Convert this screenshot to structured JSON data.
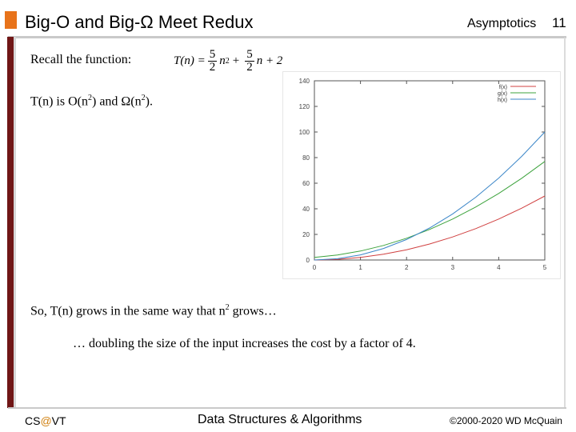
{
  "slide": {
    "title": "Big-O and Big-Ω Meet Redux",
    "topic": "Asymptotics",
    "number": "11"
  },
  "body": {
    "recall": "Recall the function:",
    "formula": {
      "lhs": "T(n) =",
      "frac1_num": "5",
      "frac1_den": "2",
      "n_sq": "n",
      "sq_exp": "2",
      "plus1": "+",
      "frac2_num": "5",
      "frac2_den": "2",
      "tail": "n + 2"
    },
    "claim_pre": "T(n) is O(n",
    "claim_mid": ") and Ω(n",
    "claim_post": ").",
    "claim_exp1": "2",
    "claim_exp2": "2",
    "grows_pre": "So, T(n) grows in the same way that n",
    "grows_exp": "2",
    "grows_post": " grows…",
    "doubling": "… doubling the size of the input increases the cost by a factor of 4."
  },
  "chart_data": {
    "type": "line",
    "x_ticks": [
      "0",
      "1",
      "2",
      "3",
      "4",
      "5"
    ],
    "y_ticks": [
      "0",
      "20",
      "40",
      "60",
      "80",
      "100",
      "120",
      "140"
    ],
    "xlim": [
      0,
      5
    ],
    "ylim": [
      0,
      140
    ],
    "legend_placement": "top-right",
    "grid": false,
    "series": [
      {
        "name": "f(x)",
        "color": "#d04040",
        "points": [
          [
            0,
            0
          ],
          [
            0.5,
            0.5
          ],
          [
            1,
            2
          ],
          [
            1.5,
            4.5
          ],
          [
            2,
            8
          ],
          [
            2.5,
            12.5
          ],
          [
            3,
            18
          ],
          [
            3.5,
            24.5
          ],
          [
            4,
            32
          ],
          [
            4.5,
            40.5
          ],
          [
            5,
            50
          ]
        ]
      },
      {
        "name": "g(x)",
        "color": "#3da33d",
        "points": [
          [
            0,
            2
          ],
          [
            0.5,
            3.875
          ],
          [
            1,
            7
          ],
          [
            1.5,
            11.375
          ],
          [
            2,
            17
          ],
          [
            2.5,
            23.875
          ],
          [
            3,
            32
          ],
          [
            3.5,
            41.375
          ],
          [
            4,
            52
          ],
          [
            4.5,
            63.875
          ],
          [
            5,
            77
          ]
        ]
      },
      {
        "name": "h(x)",
        "color": "#3b86c8",
        "points": [
          [
            0,
            0
          ],
          [
            0.5,
            1
          ],
          [
            1,
            4
          ],
          [
            1.5,
            9
          ],
          [
            2,
            16
          ],
          [
            2.5,
            25
          ],
          [
            3,
            36
          ],
          [
            3.5,
            49
          ],
          [
            4,
            64
          ],
          [
            4.5,
            81
          ],
          [
            5,
            100
          ]
        ]
      }
    ]
  },
  "footer": {
    "left_pre": "CS",
    "left_at": "@",
    "left_post": "VT",
    "center": "Data Structures & Algorithms",
    "right": "©2000-2020 WD McQuain"
  }
}
